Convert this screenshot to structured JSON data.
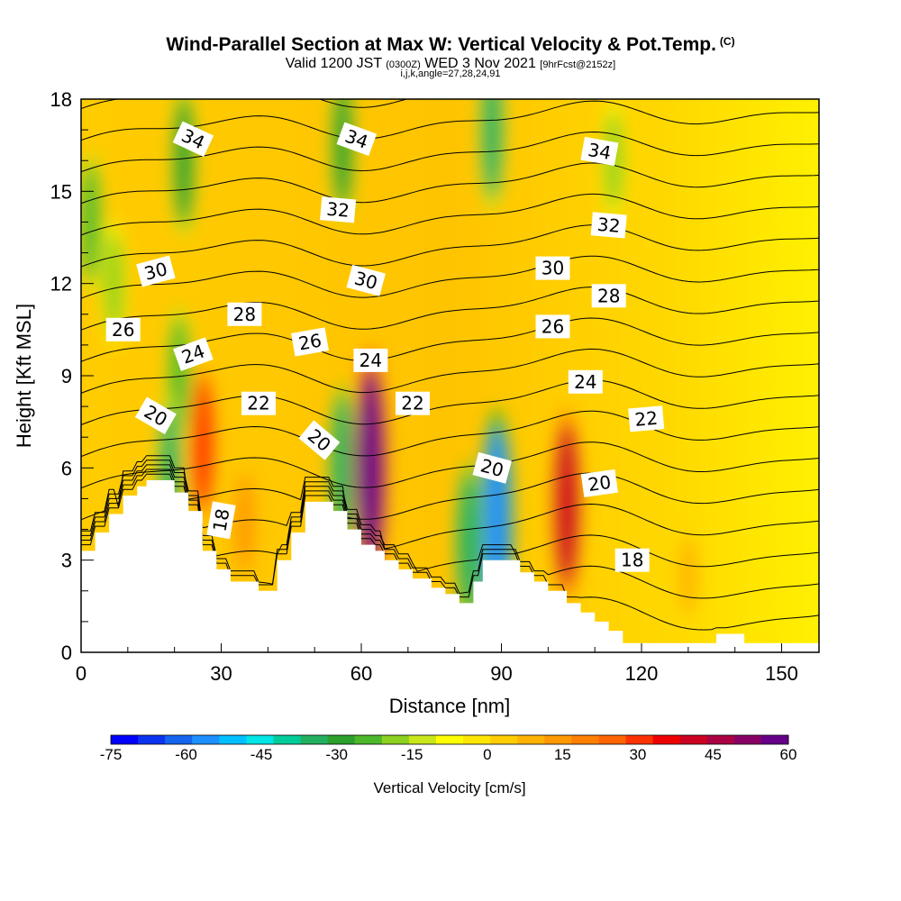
{
  "header": {
    "title": "Wind-Parallel Section at Max W: Vertical Velocity & Pot.Temp.",
    "copyright": "(C)",
    "valid_prefix": "Valid 1200 JST",
    "valid_utc": "(0300Z)",
    "valid_date": "WED 3 Nov 2021",
    "forecast": "[9hrFcst@2152z]",
    "indices": "i,j,k,angle=27,28,24,91"
  },
  "chart_data": {
    "type": "heatmap",
    "xlabel": "Distance [nm]",
    "ylabel": "Height [Kft MSL]",
    "xlim": [
      0,
      158
    ],
    "ylim": [
      0,
      18
    ],
    "xticks": [
      0,
      30,
      60,
      90,
      120,
      150
    ],
    "yticks": [
      0,
      3,
      6,
      9,
      12,
      15,
      18
    ],
    "colorbar": {
      "label": "Vertical Velocity [cm/s]",
      "range": [
        -75,
        60
      ],
      "ticks": [
        -75,
        -60,
        -45,
        -30,
        -15,
        0,
        15,
        30,
        45,
        60
      ],
      "colors": [
        "#0000ff",
        "#0a33f0",
        "#1565ee",
        "#1e90ff",
        "#00bfff",
        "#00e5e5",
        "#00cc99",
        "#22b060",
        "#2ca02c",
        "#4db82a",
        "#8cd020",
        "#c8e61a",
        "#ffff00",
        "#ffe600",
        "#ffcc00",
        "#ffb300",
        "#ff9900",
        "#ff8000",
        "#ff6600",
        "#ff3300",
        "#ee0000",
        "#cc0022",
        "#aa0044",
        "#880066",
        "#660088"
      ]
    },
    "terrain_top_kft": [
      [
        0,
        3.3
      ],
      [
        3,
        3.3
      ],
      [
        3,
        3.9
      ],
      [
        6,
        3.9
      ],
      [
        6,
        4.5
      ],
      [
        9,
        4.5
      ],
      [
        9,
        5.1
      ],
      [
        12,
        5.1
      ],
      [
        12,
        5.4
      ],
      [
        14,
        5.4
      ],
      [
        14,
        5.6
      ],
      [
        20,
        5.6
      ],
      [
        20,
        5.2
      ],
      [
        23,
        5.2
      ],
      [
        23,
        4.6
      ],
      [
        26,
        4.6
      ],
      [
        26,
        3.3
      ],
      [
        29,
        3.3
      ],
      [
        29,
        2.7
      ],
      [
        32,
        2.7
      ],
      [
        32,
        2.3
      ],
      [
        38,
        2.3
      ],
      [
        38,
        2.0
      ],
      [
        42,
        2.0
      ],
      [
        42,
        3.0
      ],
      [
        45,
        3.0
      ],
      [
        45,
        3.9
      ],
      [
        48,
        3.9
      ],
      [
        48,
        4.9
      ],
      [
        54,
        4.9
      ],
      [
        54,
        4.6
      ],
      [
        57,
        4.6
      ],
      [
        57,
        4.0
      ],
      [
        60,
        4.0
      ],
      [
        60,
        3.5
      ],
      [
        63,
        3.5
      ],
      [
        63,
        3.3
      ],
      [
        65,
        3.3
      ],
      [
        65,
        3.0
      ],
      [
        68,
        3.0
      ],
      [
        68,
        2.7
      ],
      [
        71,
        2.7
      ],
      [
        71,
        2.4
      ],
      [
        75,
        2.4
      ],
      [
        75,
        2.1
      ],
      [
        78,
        2.1
      ],
      [
        78,
        1.9
      ],
      [
        81,
        1.9
      ],
      [
        81,
        1.6
      ],
      [
        84,
        1.6
      ],
      [
        84,
        2.3
      ],
      [
        86,
        2.3
      ],
      [
        86,
        3.0
      ],
      [
        94,
        3.0
      ],
      [
        94,
        2.6
      ],
      [
        97,
        2.6
      ],
      [
        97,
        2.3
      ],
      [
        100,
        2.3
      ],
      [
        100,
        2.0
      ],
      [
        104,
        2.0
      ],
      [
        104,
        1.6
      ],
      [
        107,
        1.6
      ],
      [
        107,
        1.3
      ],
      [
        110,
        1.3
      ],
      [
        110,
        1.0
      ],
      [
        113,
        1.0
      ],
      [
        113,
        0.7
      ],
      [
        116,
        0.7
      ],
      [
        116,
        0.3
      ],
      [
        136,
        0.3
      ],
      [
        136,
        0.6
      ],
      [
        142,
        0.6
      ],
      [
        142,
        0.3
      ],
      [
        158,
        0.3
      ]
    ],
    "vertical_velocity_features": [
      {
        "x": 2,
        "y": 14,
        "value": -25
      },
      {
        "x": 7,
        "y": 12,
        "value": -20
      },
      {
        "x": 22,
        "y": 16,
        "value": -30
      },
      {
        "x": 21,
        "y": 9,
        "value": -25
      },
      {
        "x": 19,
        "y": 5.8,
        "value": -32
      },
      {
        "x": 26,
        "y": 6.8,
        "value": 30
      },
      {
        "x": 35,
        "y": 4.2,
        "value": 15
      },
      {
        "x": 56,
        "y": 16.5,
        "value": -30
      },
      {
        "x": 56,
        "y": 6.0,
        "value": -35
      },
      {
        "x": 62,
        "y": 6.0,
        "value": 58
      },
      {
        "x": 88,
        "y": 17,
        "value": -33
      },
      {
        "x": 89,
        "y": 4.2,
        "value": -55
      },
      {
        "x": 83,
        "y": 3.5,
        "value": -35
      },
      {
        "x": 104,
        "y": 4.8,
        "value": 42
      },
      {
        "x": 114,
        "y": 16,
        "value": -18
      },
      {
        "x": 130,
        "y": 2.5,
        "value": 8
      }
    ],
    "theta_contour_labels": [
      {
        "x": 24,
        "y": 16.7,
        "label": "34",
        "angle": 25
      },
      {
        "x": 59,
        "y": 16.7,
        "label": "34",
        "angle": 20
      },
      {
        "x": 111,
        "y": 16.3,
        "label": "34",
        "angle": 10
      },
      {
        "x": 55,
        "y": 14.4,
        "label": "32",
        "angle": 5
      },
      {
        "x": 113,
        "y": 13.9,
        "label": "32",
        "angle": 5
      },
      {
        "x": 16,
        "y": 12.4,
        "label": "30",
        "angle": -15
      },
      {
        "x": 61,
        "y": 12.1,
        "label": "30",
        "angle": 15
      },
      {
        "x": 101,
        "y": 12.5,
        "label": "30",
        "angle": 0
      },
      {
        "x": 35,
        "y": 11.0,
        "label": "28",
        "angle": 0
      },
      {
        "x": 113,
        "y": 11.6,
        "label": "28",
        "angle": 0
      },
      {
        "x": 9,
        "y": 10.5,
        "label": "26",
        "angle": 0
      },
      {
        "x": 49,
        "y": 10.1,
        "label": "26",
        "angle": -10
      },
      {
        "x": 101,
        "y": 10.6,
        "label": "26",
        "angle": 0
      },
      {
        "x": 24,
        "y": 9.7,
        "label": "24",
        "angle": -20
      },
      {
        "x": 62,
        "y": 9.5,
        "label": "24",
        "angle": 0
      },
      {
        "x": 108,
        "y": 8.8,
        "label": "24",
        "angle": 0
      },
      {
        "x": 16,
        "y": 7.7,
        "label": "20",
        "angle": 30
      },
      {
        "x": 38,
        "y": 8.1,
        "label": "22",
        "angle": 0
      },
      {
        "x": 71,
        "y": 8.1,
        "label": "22",
        "angle": 0
      },
      {
        "x": 121,
        "y": 7.6,
        "label": "22",
        "angle": -5
      },
      {
        "x": 51,
        "y": 6.9,
        "label": "20",
        "angle": 40
      },
      {
        "x": 88,
        "y": 6.0,
        "label": "20",
        "angle": 15
      },
      {
        "x": 111,
        "y": 5.5,
        "label": "20",
        "angle": -8
      },
      {
        "x": 30,
        "y": 4.3,
        "label": "18",
        "angle": -80
      },
      {
        "x": 118,
        "y": 3.0,
        "label": "18",
        "angle": 0
      }
    ]
  }
}
